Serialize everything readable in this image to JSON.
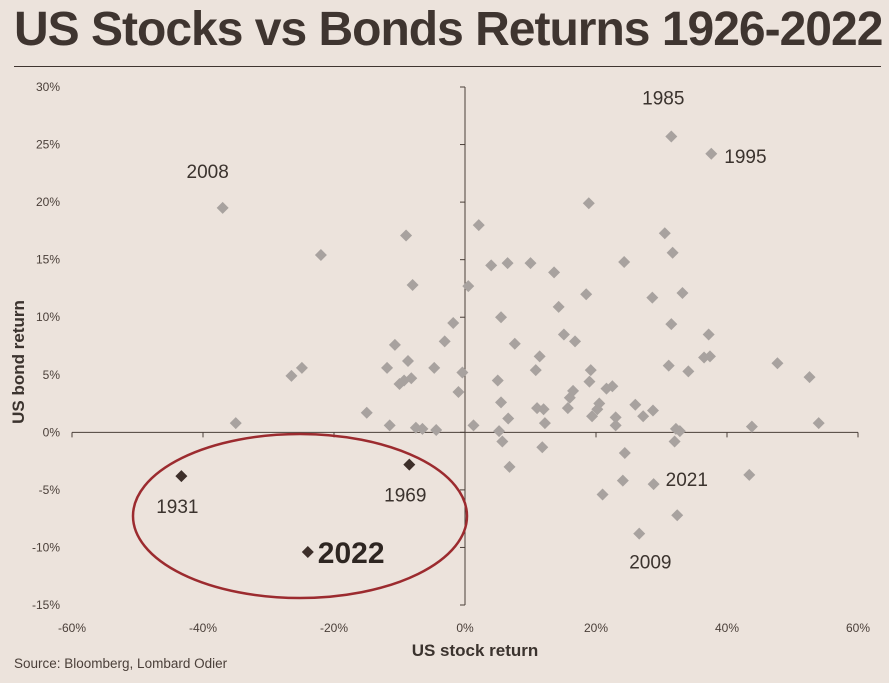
{
  "title": "US Stocks vs Bonds Returns 1926-2022",
  "source": "Source: Bloomberg, Lombard Odier",
  "chart_data": {
    "type": "scatter",
    "xlabel": "US stock return",
    "ylabel": "US bond return",
    "xlim": [
      -60,
      60
    ],
    "ylim": [
      -15,
      30
    ],
    "x_ticks": [
      "-60%",
      "-40%",
      "-20%",
      "0%",
      "20%",
      "40%",
      "60%"
    ],
    "y_ticks": [
      "-15%",
      "-10%",
      "-5%",
      "0%",
      "5%",
      "10%",
      "15%",
      "20%",
      "25%",
      "30%"
    ],
    "colors": {
      "points": "#a8a29f",
      "highlight": "#3d2f2a",
      "ellipse": "#9c2b2f"
    },
    "points": [
      [
        -37.0,
        19.5
      ],
      [
        -35.0,
        0.8
      ],
      [
        -26.5,
        4.9
      ],
      [
        -24.9,
        5.6
      ],
      [
        -22.0,
        15.4
      ],
      [
        -15.0,
        1.7
      ],
      [
        -11.9,
        5.6
      ],
      [
        -11.5,
        0.6
      ],
      [
        -10.7,
        7.6
      ],
      [
        -10.0,
        4.2
      ],
      [
        -9.3,
        4.5
      ],
      [
        -9.0,
        17.1
      ],
      [
        -8.7,
        6.2
      ],
      [
        -8.2,
        4.7
      ],
      [
        -8.0,
        12.8
      ],
      [
        -7.5,
        0.4
      ],
      [
        -6.5,
        0.3
      ],
      [
        -4.7,
        5.6
      ],
      [
        -4.4,
        0.2
      ],
      [
        -3.1,
        7.9
      ],
      [
        -1.8,
        9.5
      ],
      [
        -1.0,
        3.5
      ],
      [
        -0.4,
        5.2
      ],
      [
        0.5,
        12.7
      ],
      [
        1.3,
        0.6
      ],
      [
        2.1,
        18.0
      ],
      [
        4.0,
        14.5
      ],
      [
        5.0,
        4.5
      ],
      [
        5.2,
        0.1
      ],
      [
        5.5,
        2.6
      ],
      [
        5.5,
        10.0
      ],
      [
        5.7,
        -0.8
      ],
      [
        6.5,
        14.7
      ],
      [
        6.6,
        1.2
      ],
      [
        6.8,
        -3.0
      ],
      [
        7.6,
        7.7
      ],
      [
        10.0,
        14.7
      ],
      [
        10.8,
        5.4
      ],
      [
        11.0,
        2.1
      ],
      [
        11.4,
        6.6
      ],
      [
        11.8,
        -1.3
      ],
      [
        12.0,
        2.0
      ],
      [
        12.2,
        0.8
      ],
      [
        13.6,
        13.9
      ],
      [
        14.3,
        10.9
      ],
      [
        15.1,
        8.5
      ],
      [
        15.7,
        2.1
      ],
      [
        16.0,
        3.0
      ],
      [
        16.5,
        3.6
      ],
      [
        16.8,
        7.9
      ],
      [
        18.5,
        12.0
      ],
      [
        18.9,
        19.9
      ],
      [
        19.0,
        4.4
      ],
      [
        19.2,
        5.4
      ],
      [
        19.4,
        1.4
      ],
      [
        20.2,
        2.0
      ],
      [
        20.5,
        2.5
      ],
      [
        21.0,
        -5.4
      ],
      [
        21.6,
        3.8
      ],
      [
        22.5,
        4.0
      ],
      [
        23.0,
        1.3
      ],
      [
        23.0,
        0.6
      ],
      [
        24.1,
        -4.2
      ],
      [
        24.3,
        14.8
      ],
      [
        24.4,
        -1.8
      ],
      [
        26.0,
        2.4
      ],
      [
        26.6,
        -8.8
      ],
      [
        27.2,
        1.4
      ],
      [
        28.6,
        11.7
      ],
      [
        28.7,
        1.9
      ],
      [
        28.8,
        -4.5
      ],
      [
        30.5,
        17.3
      ],
      [
        31.1,
        5.8
      ],
      [
        31.5,
        9.4
      ],
      [
        31.5,
        25.7
      ],
      [
        31.7,
        15.6
      ],
      [
        32.0,
        -0.8
      ],
      [
        32.2,
        0.3
      ],
      [
        32.4,
        -7.2
      ],
      [
        32.8,
        0.1
      ],
      [
        33.2,
        12.1
      ],
      [
        34.1,
        5.3
      ],
      [
        36.5,
        6.5
      ],
      [
        37.2,
        8.5
      ],
      [
        37.4,
        6.6
      ],
      [
        37.6,
        24.2
      ],
      [
        43.4,
        -3.7
      ],
      [
        43.8,
        0.5
      ],
      [
        47.7,
        6.0
      ],
      [
        52.6,
        4.8
      ],
      [
        54.0,
        0.8
      ]
    ],
    "highlighted_points": [
      {
        "year": "1931",
        "x": -43.3,
        "y": -3.8
      },
      {
        "year": "1969",
        "x": -8.5,
        "y": -2.8
      },
      {
        "year": "2022",
        "x": -24.0,
        "y": -10.4
      }
    ],
    "labels": [
      {
        "text": "2008",
        "x": -37.0,
        "y": 19.5
      },
      {
        "text": "1985",
        "x": 31.5,
        "y": 25.7
      },
      {
        "text": "1995",
        "x": 37.6,
        "y": 24.2
      },
      {
        "text": "2021",
        "x": 28.8,
        "y": -4.5
      },
      {
        "text": "2009",
        "x": 26.6,
        "y": -8.8
      }
    ],
    "grid": false
  }
}
